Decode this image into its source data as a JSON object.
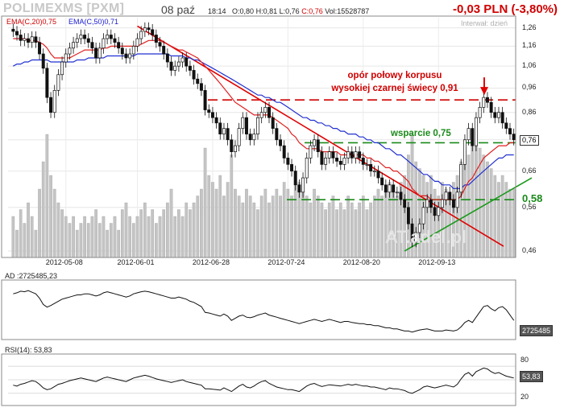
{
  "header": {
    "ticker": "POLIMEXMS [PXM]",
    "date": "08 paź",
    "time": "18:14",
    "open": "O:0,80",
    "high": "H:0,81",
    "low": "L:0,76",
    "close": "C:0,76",
    "volume": "Vol:15528787",
    "change": "-0,03 PLN (-3,80%)",
    "interval": "Interwał: dzień"
  },
  "legend": {
    "ema20": "EMA(C,20)0,75",
    "ema50": "EMA(C,50)0,71"
  },
  "annotations": {
    "resistance_line1": "opór połowy korpusu",
    "resistance_line2": "wysokiej czarnej świecy 0,91",
    "support_label": "wsparcie 0,75",
    "support_058": "0,58"
  },
  "watermark": "AT.adel.pl",
  "colors": {
    "resistance": "#d00000",
    "support": "#1a8a1a",
    "ema20": "#e02020",
    "ema50": "#2030d0",
    "trendline_down": "#e00000",
    "trendline_up": "#1a9a1a",
    "volume": "#c4c4c4"
  },
  "chart_data": [
    {
      "type": "candlestick",
      "y_axis_scale": "log",
      "ylim": [
        0.45,
        1.3
      ],
      "y_ticks": [
        "1,26",
        "1,16",
        "1,06",
        "0,96",
        "0,86",
        "0,76",
        "0,66",
        "0,56",
        "0,46"
      ],
      "x_tick_labels": [
        "2012-05-08",
        "2012-06-01",
        "2012-06-28",
        "2012-07-24",
        "2012-08-20",
        "2012-09-13"
      ],
      "current_price_label": "0,76",
      "close": [
        1.24,
        1.22,
        1.19,
        1.2,
        1.18,
        1.21,
        1.18,
        1.12,
        1.05,
        0.92,
        0.86,
        0.95,
        1.02,
        1.08,
        1.12,
        1.15,
        1.18,
        1.2,
        1.22,
        1.2,
        1.18,
        1.15,
        1.1,
        1.15,
        1.2,
        1.22,
        1.2,
        1.18,
        1.15,
        1.12,
        1.1,
        1.12,
        1.16,
        1.2,
        1.24,
        1.26,
        1.25,
        1.22,
        1.18,
        1.16,
        1.12,
        1.08,
        1.04,
        1.06,
        1.08,
        1.1,
        1.06,
        1.04,
        1.0,
        0.98,
        0.95,
        0.87,
        0.86,
        0.84,
        0.82,
        0.78,
        0.8,
        0.76,
        0.72,
        0.74,
        0.8,
        0.84,
        0.78,
        0.76,
        0.78,
        0.84,
        0.86,
        0.88,
        0.84,
        0.8,
        0.76,
        0.74,
        0.7,
        0.68,
        0.66,
        0.62,
        0.6,
        0.64,
        0.7,
        0.74,
        0.76,
        0.72,
        0.68,
        0.7,
        0.72,
        0.7,
        0.69,
        0.68,
        0.7,
        0.72,
        0.7,
        0.72,
        0.7,
        0.68,
        0.68,
        0.66,
        0.66,
        0.64,
        0.62,
        0.6,
        0.62,
        0.6,
        0.6,
        0.58,
        0.56,
        0.52,
        0.48,
        0.5,
        0.52,
        0.56,
        0.58,
        0.56,
        0.54,
        0.56,
        0.58,
        0.6,
        0.58,
        0.56,
        0.6,
        0.68,
        0.76,
        0.8,
        0.74,
        0.84,
        0.88,
        0.92,
        0.9,
        0.86,
        0.84,
        0.86,
        0.82,
        0.8,
        0.78,
        0.76
      ],
      "volume_relative": [
        0.3,
        0.2,
        0.35,
        0.25,
        0.4,
        0.3,
        0.2,
        0.5,
        0.7,
        0.9,
        0.6,
        0.5,
        0.4,
        0.35,
        0.3,
        0.25,
        0.3,
        0.2,
        0.25,
        0.3,
        0.25,
        0.3,
        0.35,
        0.25,
        0.3,
        0.2,
        0.25,
        0.3,
        0.2,
        0.35,
        0.4,
        0.3,
        0.25,
        0.3,
        0.35,
        0.4,
        0.3,
        0.35,
        0.25,
        0.3,
        0.35,
        0.4,
        0.5,
        0.3,
        0.35,
        0.3,
        0.4,
        0.35,
        0.4,
        0.45,
        0.5,
        0.8,
        0.6,
        0.55,
        0.5,
        0.6,
        0.45,
        0.55,
        0.75,
        0.5,
        0.45,
        0.4,
        0.5,
        0.45,
        0.4,
        0.35,
        0.45,
        0.5,
        0.4,
        0.45,
        0.5,
        0.45,
        0.55,
        0.5,
        0.45,
        0.6,
        0.55,
        0.5,
        0.45,
        0.4,
        0.5,
        0.45,
        0.4,
        0.35,
        0.4,
        0.45,
        0.35,
        0.4,
        0.35,
        0.45,
        0.4,
        0.35,
        0.4,
        0.45,
        0.35,
        0.4,
        0.45,
        0.5,
        0.45,
        0.5,
        0.55,
        0.5,
        0.45,
        0.55,
        0.6,
        0.75,
        0.9,
        0.7,
        0.65,
        0.6,
        0.55,
        0.6,
        0.5,
        0.45,
        0.55,
        0.5,
        0.45,
        0.55,
        0.6,
        0.7,
        0.8,
        0.75,
        0.85,
        0.9,
        0.8,
        0.75,
        0.7,
        0.65,
        0.6,
        0.55,
        0.6,
        0.55,
        0.5,
        0.5
      ],
      "ema20": [
        1.2,
        1.2,
        1.2,
        1.2,
        1.19,
        1.19,
        1.19,
        1.18,
        1.17,
        1.15,
        1.12,
        1.1,
        1.1,
        1.1,
        1.1,
        1.1,
        1.11,
        1.12,
        1.13,
        1.14,
        1.14,
        1.14,
        1.14,
        1.14,
        1.15,
        1.15,
        1.16,
        1.16,
        1.16,
        1.16,
        1.16,
        1.16,
        1.16,
        1.16,
        1.17,
        1.18,
        1.19,
        1.19,
        1.19,
        1.19,
        1.18,
        1.17,
        1.16,
        1.15,
        1.14,
        1.14,
        1.13,
        1.12,
        1.11,
        1.1,
        1.08,
        1.06,
        1.04,
        1.02,
        1.0,
        0.98,
        0.96,
        0.94,
        0.92,
        0.9,
        0.89,
        0.88,
        0.87,
        0.86,
        0.85,
        0.85,
        0.85,
        0.85,
        0.85,
        0.84,
        0.83,
        0.82,
        0.81,
        0.8,
        0.78,
        0.77,
        0.75,
        0.74,
        0.73,
        0.73,
        0.73,
        0.73,
        0.72,
        0.72,
        0.72,
        0.72,
        0.72,
        0.71,
        0.71,
        0.71,
        0.71,
        0.71,
        0.71,
        0.71,
        0.7,
        0.7,
        0.69,
        0.69,
        0.68,
        0.67,
        0.67,
        0.66,
        0.66,
        0.65,
        0.64,
        0.63,
        0.61,
        0.6,
        0.59,
        0.59,
        0.59,
        0.58,
        0.58,
        0.58,
        0.58,
        0.58,
        0.58,
        0.58,
        0.58,
        0.59,
        0.61,
        0.63,
        0.64,
        0.66,
        0.68,
        0.7,
        0.71,
        0.72,
        0.73,
        0.74,
        0.74,
        0.74,
        0.75,
        0.75
      ],
      "ema50": [
        1.06,
        1.07,
        1.07,
        1.08,
        1.08,
        1.09,
        1.09,
        1.09,
        1.09,
        1.09,
        1.08,
        1.08,
        1.08,
        1.08,
        1.08,
        1.08,
        1.08,
        1.09,
        1.09,
        1.09,
        1.1,
        1.1,
        1.1,
        1.1,
        1.1,
        1.11,
        1.11,
        1.11,
        1.11,
        1.11,
        1.11,
        1.11,
        1.11,
        1.12,
        1.12,
        1.12,
        1.12,
        1.12,
        1.12,
        1.12,
        1.12,
        1.12,
        1.11,
        1.11,
        1.11,
        1.11,
        1.1,
        1.1,
        1.09,
        1.09,
        1.08,
        1.07,
        1.06,
        1.05,
        1.04,
        1.03,
        1.02,
        1.01,
        1.0,
        0.99,
        0.98,
        0.97,
        0.96,
        0.95,
        0.94,
        0.93,
        0.93,
        0.92,
        0.92,
        0.91,
        0.9,
        0.9,
        0.89,
        0.88,
        0.87,
        0.86,
        0.85,
        0.84,
        0.84,
        0.83,
        0.83,
        0.82,
        0.82,
        0.81,
        0.81,
        0.8,
        0.8,
        0.79,
        0.79,
        0.78,
        0.78,
        0.78,
        0.77,
        0.77,
        0.76,
        0.76,
        0.75,
        0.75,
        0.74,
        0.73,
        0.73,
        0.72,
        0.71,
        0.71,
        0.7,
        0.69,
        0.68,
        0.67,
        0.66,
        0.65,
        0.65,
        0.64,
        0.63,
        0.63,
        0.62,
        0.62,
        0.62,
        0.61,
        0.61,
        0.61,
        0.62,
        0.62,
        0.63,
        0.64,
        0.65,
        0.66,
        0.67,
        0.68,
        0.69,
        0.7,
        0.7,
        0.71,
        0.71,
        0.71
      ],
      "resistance_level": 0.91,
      "support_levels": [
        0.75,
        0.58
      ]
    },
    {
      "type": "line",
      "name": "AD",
      "label": "AD :2725485,23",
      "last_value_box": "2725485",
      "values": [
        0.8,
        0.82,
        0.85,
        0.84,
        0.86,
        0.83,
        0.8,
        0.72,
        0.6,
        0.55,
        0.58,
        0.62,
        0.66,
        0.7,
        0.72,
        0.74,
        0.76,
        0.78,
        0.78,
        0.8,
        0.8,
        0.78,
        0.76,
        0.78,
        0.82,
        0.84,
        0.82,
        0.8,
        0.78,
        0.76,
        0.74,
        0.76,
        0.8,
        0.82,
        0.84,
        0.85,
        0.84,
        0.82,
        0.8,
        0.78,
        0.76,
        0.74,
        0.72,
        0.72,
        0.74,
        0.72,
        0.7,
        0.66,
        0.64,
        0.6,
        0.56,
        0.45,
        0.44,
        0.42,
        0.4,
        0.38,
        0.42,
        0.38,
        0.3,
        0.34,
        0.38,
        0.4,
        0.36,
        0.35,
        0.37,
        0.4,
        0.42,
        0.44,
        0.4,
        0.38,
        0.36,
        0.34,
        0.32,
        0.3,
        0.28,
        0.26,
        0.24,
        0.26,
        0.28,
        0.3,
        0.32,
        0.3,
        0.28,
        0.3,
        0.32,
        0.3,
        0.28,
        0.26,
        0.28,
        0.28,
        0.26,
        0.25,
        0.24,
        0.24,
        0.22,
        0.22,
        0.2,
        0.2,
        0.18,
        0.16,
        0.16,
        0.14,
        0.14,
        0.12,
        0.1,
        0.1,
        0.08,
        0.1,
        0.12,
        0.13,
        0.14,
        0.12,
        0.1,
        0.1,
        0.1,
        0.12,
        0.11,
        0.1,
        0.12,
        0.18,
        0.26,
        0.3,
        0.26,
        0.36,
        0.46,
        0.56,
        0.58,
        0.52,
        0.48,
        0.54,
        0.56,
        0.5,
        0.4,
        0.3
      ]
    },
    {
      "type": "line",
      "name": "RSI(14)",
      "label": "RSI(14): 53,83",
      "last_value_box": "53,83",
      "ylim": [
        0,
        100
      ],
      "y_ticks": [
        "80",
        "50",
        "20"
      ],
      "values": [
        38,
        36,
        40,
        42,
        45,
        48,
        46,
        40,
        32,
        28,
        30,
        35,
        40,
        42,
        45,
        48,
        50,
        52,
        54,
        52,
        50,
        48,
        46,
        50,
        54,
        56,
        54,
        52,
        50,
        48,
        46,
        50,
        54,
        56,
        58,
        60,
        58,
        55,
        52,
        50,
        48,
        46,
        44,
        46,
        48,
        50,
        46,
        44,
        42,
        40,
        38,
        30,
        30,
        29,
        28,
        27,
        32,
        28,
        24,
        30,
        36,
        40,
        34,
        32,
        36,
        42,
        46,
        48,
        42,
        38,
        34,
        32,
        30,
        28,
        28,
        26,
        24,
        30,
        36,
        40,
        42,
        38,
        35,
        37,
        39,
        38,
        37,
        36,
        38,
        40,
        38,
        40,
        38,
        36,
        36,
        34,
        34,
        32,
        30,
        28,
        32,
        30,
        30,
        28,
        26,
        22,
        20,
        24,
        28,
        34,
        36,
        34,
        32,
        34,
        36,
        38,
        36,
        34,
        40,
        52,
        62,
        66,
        58,
        68,
        72,
        76,
        74,
        68,
        64,
        66,
        62,
        58,
        56,
        54
      ]
    }
  ]
}
